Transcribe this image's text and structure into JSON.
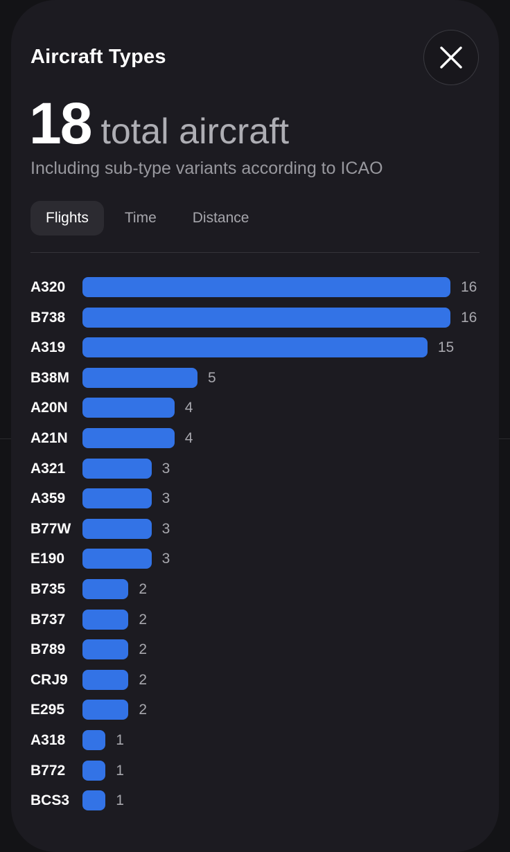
{
  "header": {
    "title": "Aircraft Types",
    "close_icon": "close-icon"
  },
  "summary": {
    "total": "18",
    "total_suffix": "total aircraft",
    "subtitle": "Including sub-type variants according to ICAO"
  },
  "tabs": [
    {
      "label": "Flights",
      "active": true
    },
    {
      "label": "Time",
      "active": false
    },
    {
      "label": "Distance",
      "active": false
    }
  ],
  "colors": {
    "bar": "#3373e6",
    "background": "#1c1b21"
  },
  "chart_data": {
    "type": "bar",
    "orientation": "horizontal",
    "categories": [
      "A320",
      "B738",
      "A319",
      "B38M",
      "A20N",
      "A21N",
      "A321",
      "A359",
      "B77W",
      "E190",
      "B735",
      "B737",
      "B789",
      "CRJ9",
      "E295",
      "A318",
      "B772",
      "BCS3"
    ],
    "values": [
      16,
      16,
      15,
      5,
      4,
      4,
      3,
      3,
      3,
      3,
      2,
      2,
      2,
      2,
      2,
      1,
      1,
      1
    ],
    "xlim": [
      0,
      16
    ],
    "data_labels": true,
    "grid": false
  }
}
